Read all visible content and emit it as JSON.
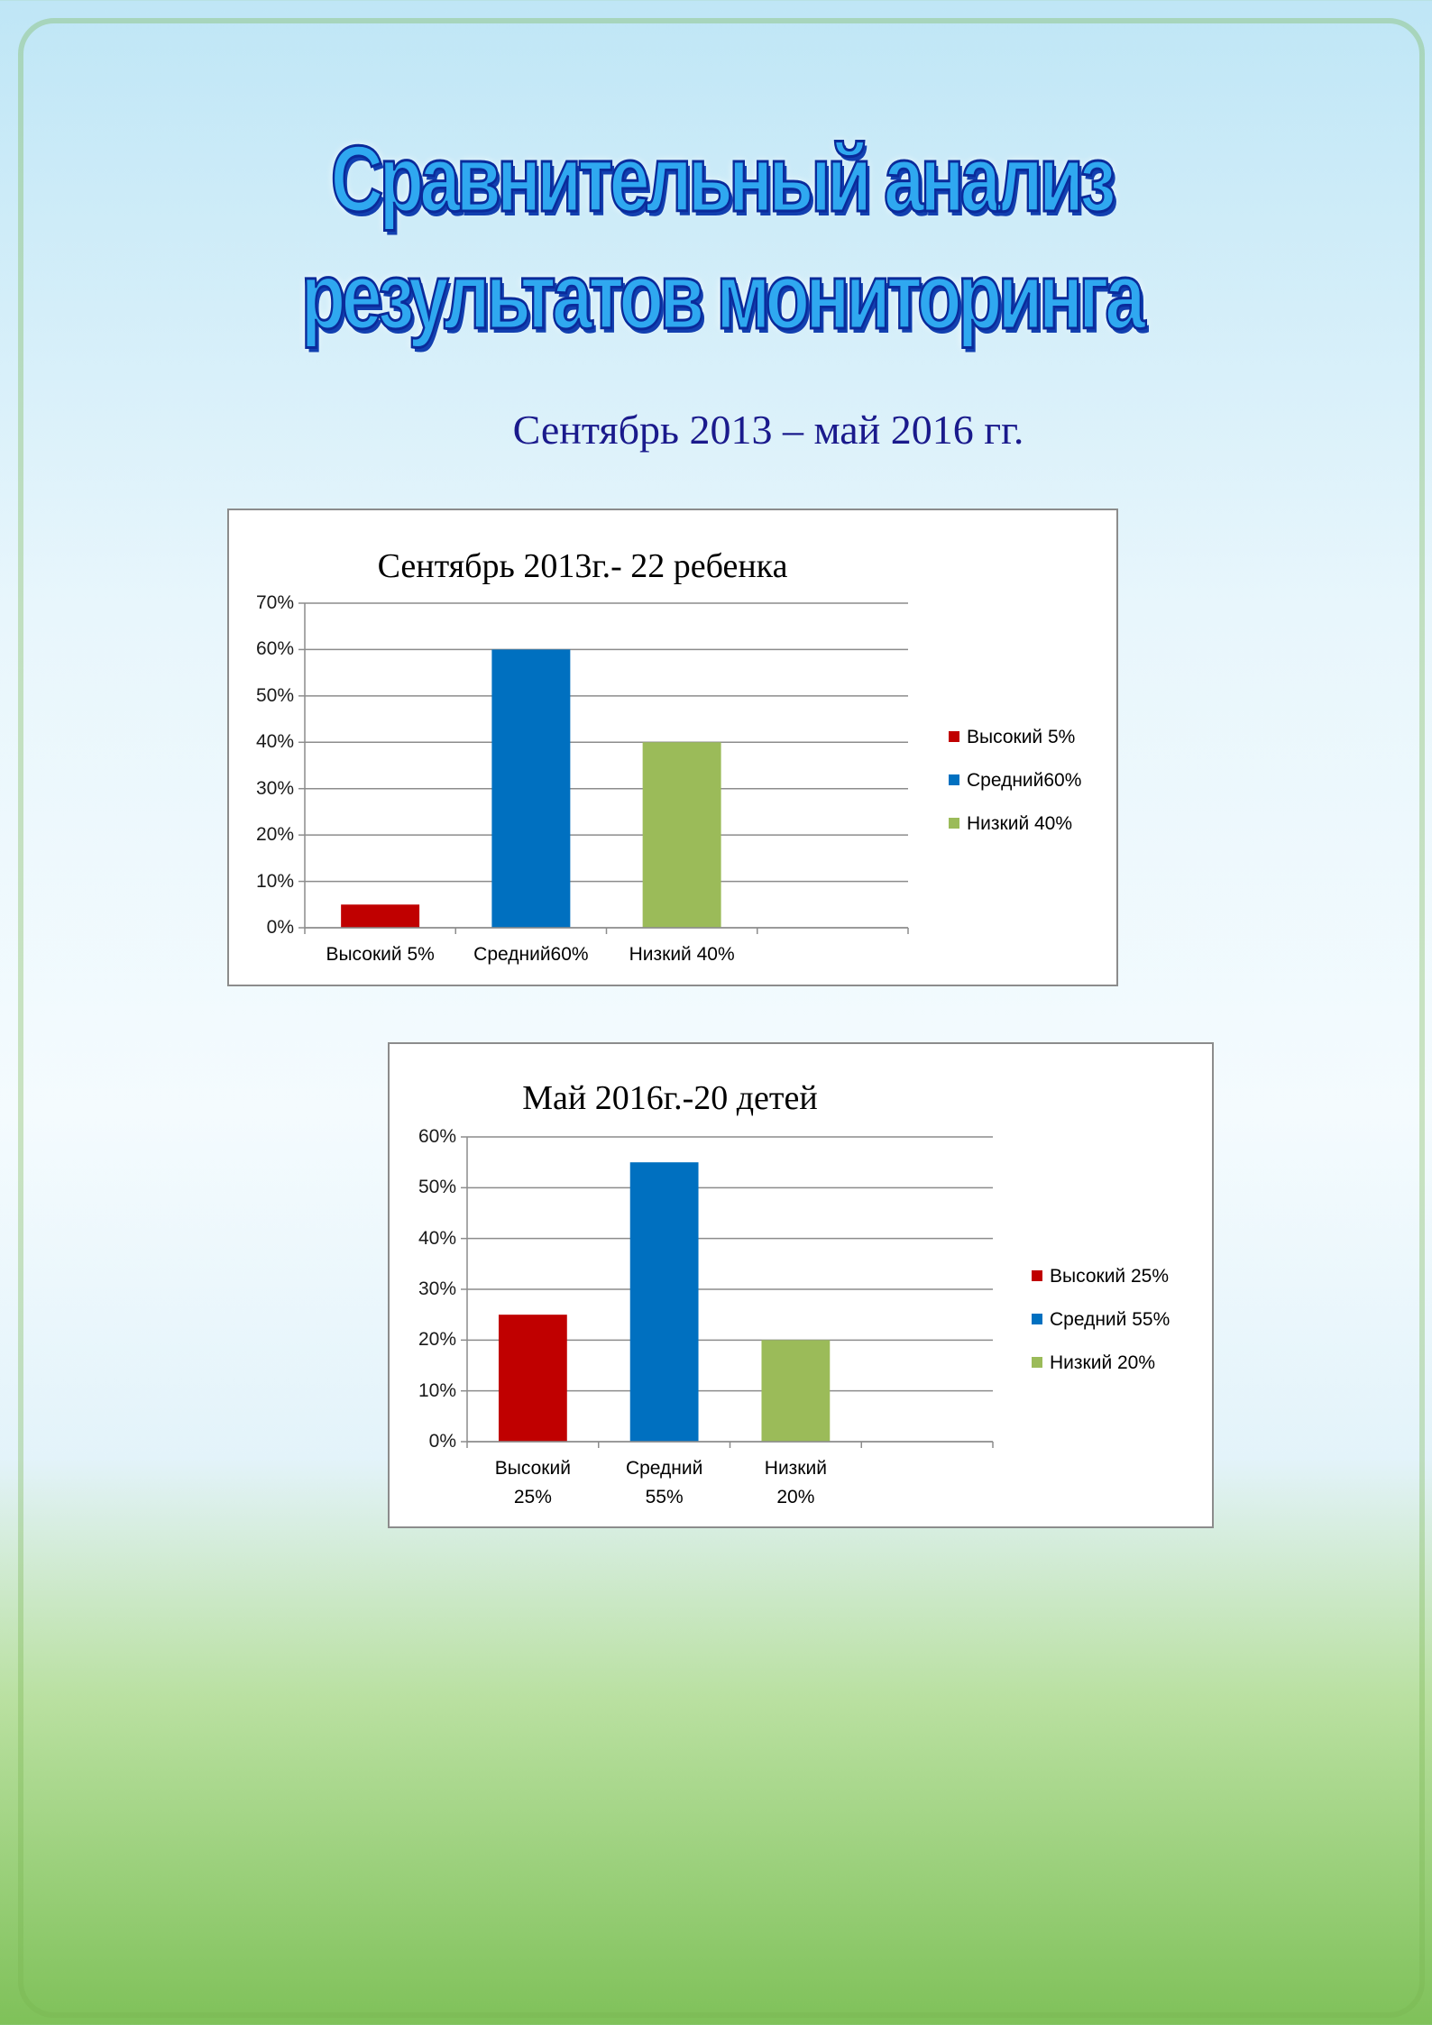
{
  "title": [
    "Сравнительный анализ",
    "результатов мониторинга"
  ],
  "subtitle": "Сентябрь 2013 – май 2016 гг.",
  "chart_data": [
    {
      "type": "bar",
      "title": "Сентябрь 2013г.- 22 ребенка",
      "categories": [
        "Высокий  5%",
        "Средний60%",
        "Низкий 40%",
        null
      ],
      "values": [
        5,
        60,
        40,
        null
      ],
      "colors": [
        "#c00000",
        "#0070c0",
        "#9bbb59"
      ],
      "ylim": [
        0,
        70
      ],
      "yticks": [
        {
          "value": 0,
          "label": "0%"
        },
        {
          "value": 10,
          "label": "10%"
        },
        {
          "value": 20,
          "label": "20%"
        },
        {
          "value": 30,
          "label": "30%"
        },
        {
          "value": 40,
          "label": "40%"
        },
        {
          "value": 50,
          "label": "50%"
        },
        {
          "value": 60,
          "label": "60%"
        },
        {
          "value": 70,
          "label": "70%"
        }
      ],
      "grid": true,
      "legend": "right"
    },
    {
      "type": "bar",
      "title": "Май 2016г.-20 детей",
      "categories": [
        "Высокий 25%",
        "Средний 55%",
        "Низкий 20%",
        null
      ],
      "values": [
        25,
        55,
        20,
        null
      ],
      "colors": [
        "#c00000",
        "#0070c0",
        "#9bbb59"
      ],
      "ylim": [
        0,
        60
      ],
      "yticks": [
        {
          "value": 0,
          "label": "0%"
        },
        {
          "value": 10,
          "label": "10%"
        },
        {
          "value": 20,
          "label": "20%"
        },
        {
          "value": 30,
          "label": "30%"
        },
        {
          "value": 40,
          "label": "40%"
        },
        {
          "value": 50,
          "label": "50%"
        },
        {
          "value": 60,
          "label": "60%"
        }
      ],
      "grid": true,
      "legend": "right"
    }
  ]
}
